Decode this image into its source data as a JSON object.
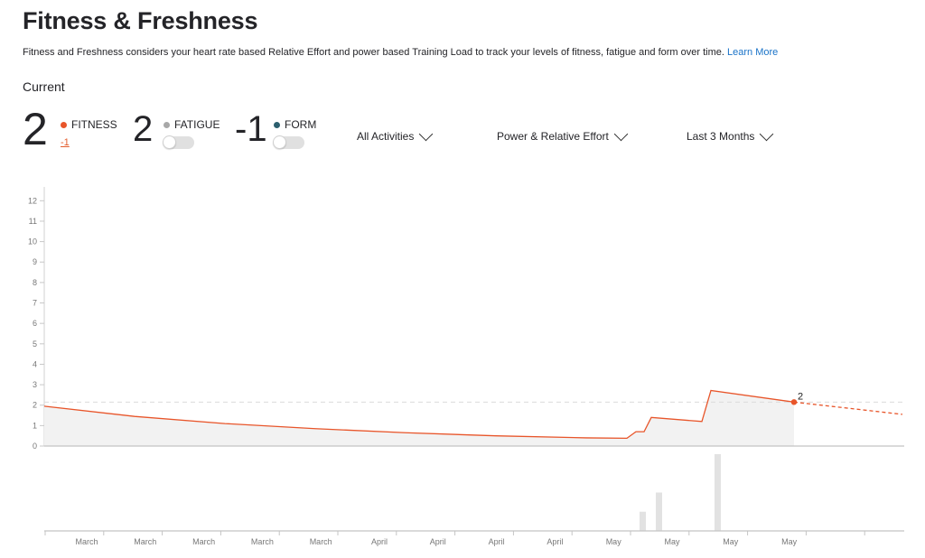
{
  "header": {
    "title": "Fitness & Freshness",
    "description": "Fitness and Freshness considers your heart rate based Relative Effort and power based Training Load to track your levels of fitness, fatigue and form over time.",
    "learn_more": "Learn More"
  },
  "current": {
    "label": "Current",
    "fitness": {
      "value": "2",
      "label": "FITNESS",
      "change": "-1",
      "color": "#e8552a"
    },
    "fatigue": {
      "value": "2",
      "label": "FATIGUE",
      "color": "#a8a8a8",
      "toggle_on": false
    },
    "form": {
      "value": "-1",
      "label": "FORM",
      "color": "#2c5f6e",
      "toggle_on": false
    }
  },
  "filters": {
    "activities": "All Activities",
    "metric": "Power & Relative Effort",
    "range": "Last 3 Months"
  },
  "chart_data": {
    "type": "line",
    "ylim": [
      0,
      12.5
    ],
    "y_ticks": [
      0,
      1,
      2,
      3,
      4,
      5,
      6,
      7,
      8,
      9,
      10,
      11,
      12
    ],
    "x_ticks": [
      "March",
      "March",
      "March",
      "March",
      "March",
      "April",
      "April",
      "April",
      "April",
      "May",
      "May",
      "May",
      "May"
    ],
    "fitness_series": {
      "name": "FITNESS",
      "color": "#e8552a",
      "points": [
        [
          0,
          1.95
        ],
        [
          100,
          1.45
        ],
        [
          200,
          1.1
        ],
        [
          300,
          0.85
        ],
        [
          400,
          0.65
        ],
        [
          500,
          0.5
        ],
        [
          600,
          0.4
        ],
        [
          645,
          0.38
        ],
        [
          655,
          0.7
        ],
        [
          664,
          0.7
        ],
        [
          672,
          1.4
        ],
        [
          728,
          1.2
        ],
        [
          738,
          2.72
        ],
        [
          830,
          2.15
        ]
      ],
      "projection": [
        [
          830,
          2.15
        ],
        [
          950,
          1.55
        ]
      ],
      "current_label": "2",
      "reference_level": 2.15
    },
    "activity_bars": [
      {
        "x": 659,
        "value": 0.25
      },
      {
        "x": 677,
        "value": 0.5
      },
      {
        "x": 742,
        "value": 1.0
      }
    ]
  }
}
